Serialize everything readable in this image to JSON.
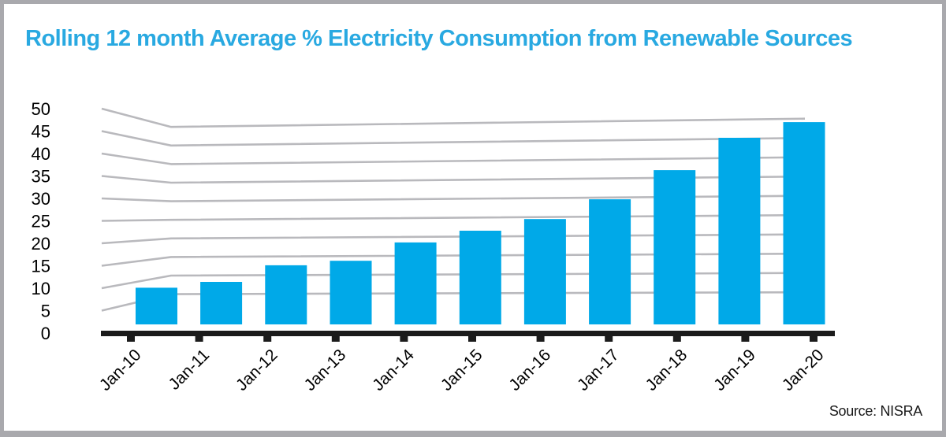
{
  "colors": {
    "title": "#29a9e1",
    "bar": "#00a9e8",
    "grid": "#b9b9bd",
    "axis": "#1b1b1b",
    "text": "#000000",
    "frame": "#a9a9ad"
  },
  "chart_data": {
    "type": "bar",
    "title": "Rolling 12 month Average % Electricity Consumption from Renewable Sources",
    "source": "Source: NISRA",
    "categories": [
      "Jan-10",
      "Jan-11",
      "Jan-12",
      "Jan-13",
      "Jan-14",
      "Jan-15",
      "Jan-16",
      "Jan-17",
      "Jan-18",
      "Jan-19",
      "Jan-20"
    ],
    "values": [
      10.1,
      11.4,
      15.1,
      16.1,
      20.2,
      22.8,
      25.4,
      29.8,
      36.3,
      43.5,
      47.0
    ],
    "xlabel": "",
    "ylabel": "",
    "ylim": [
      0,
      50
    ],
    "yticks": [
      0,
      5,
      10,
      15,
      20,
      25,
      30,
      35,
      40,
      45,
      50
    ],
    "grid": true,
    "legend": false,
    "x_tick_label_rotation_deg": -45
  }
}
